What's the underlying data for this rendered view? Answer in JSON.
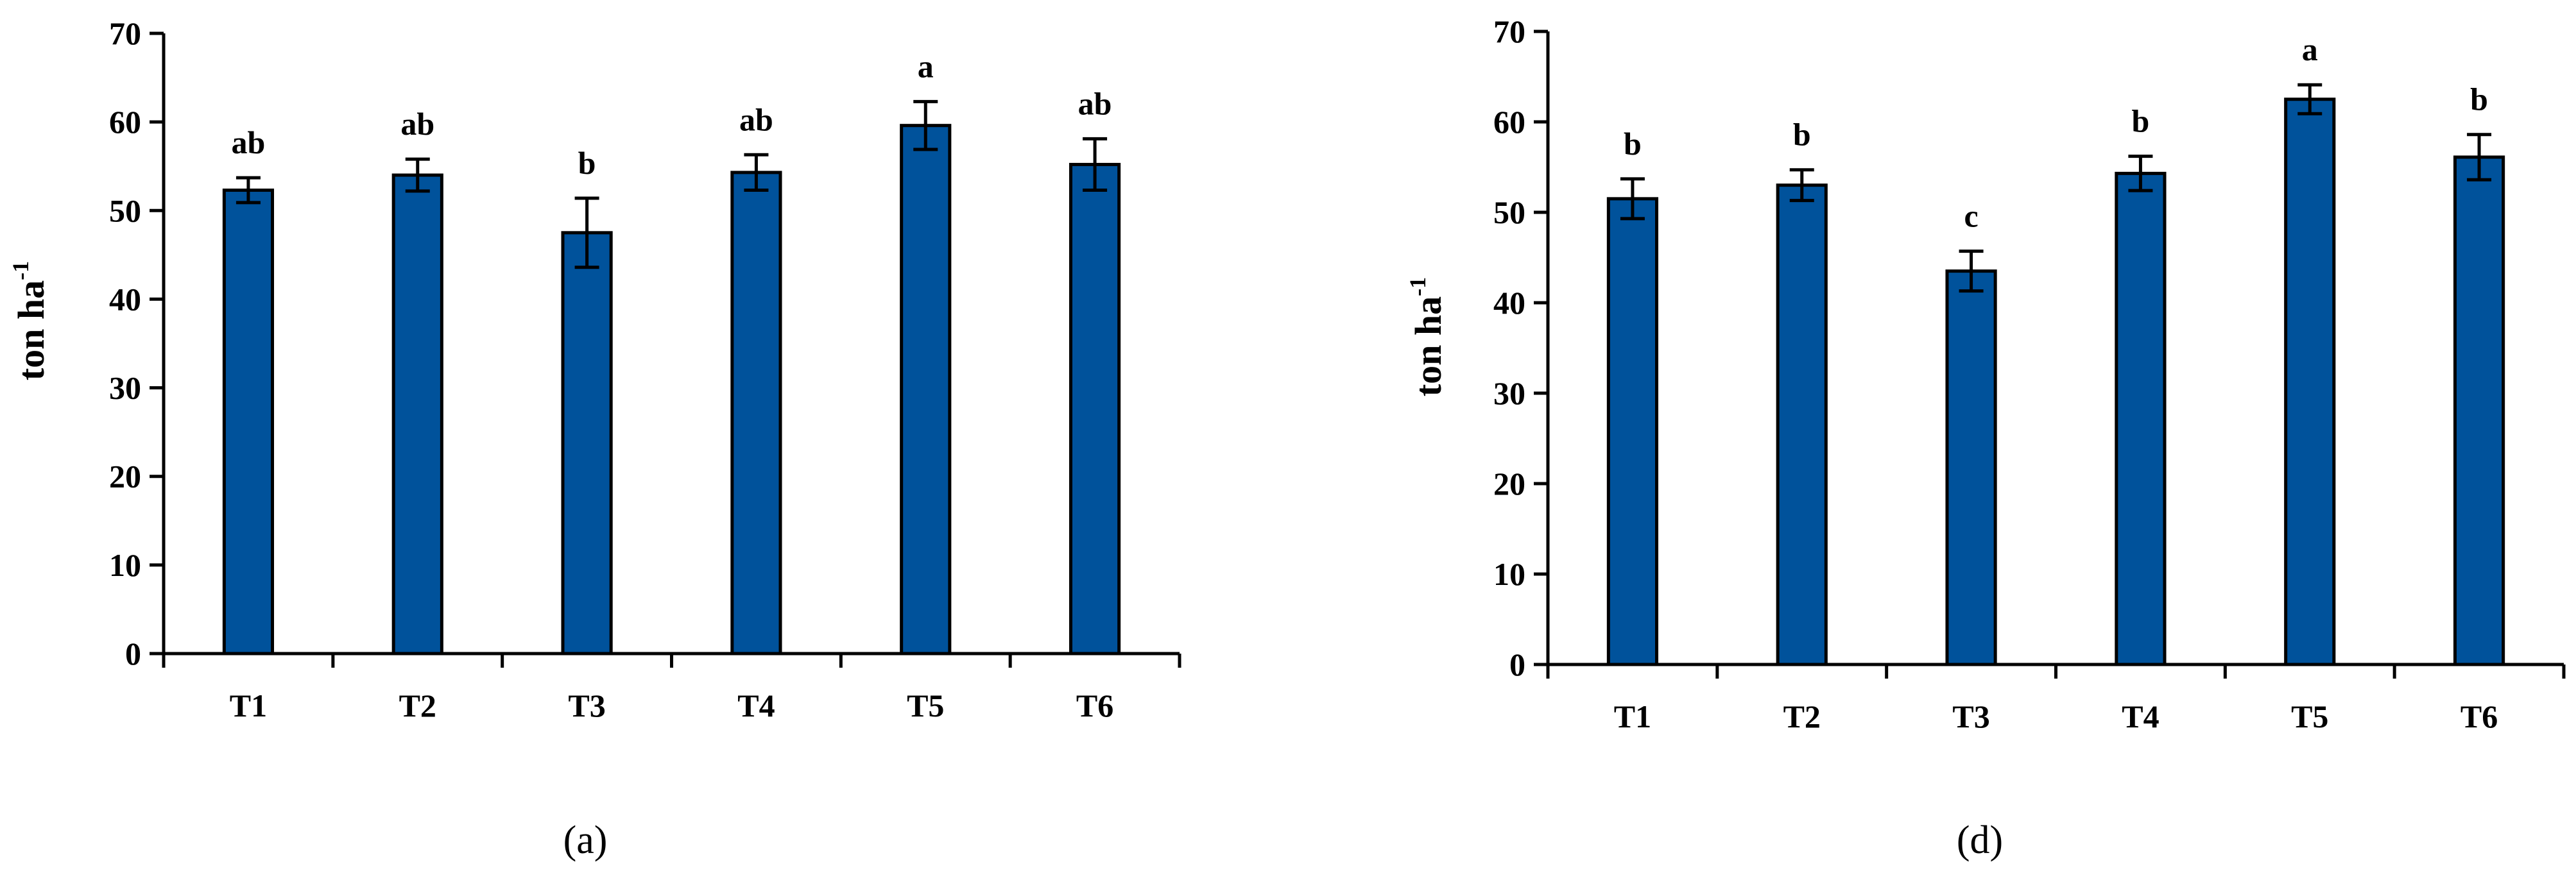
{
  "chart_data": [
    {
      "type": "bar",
      "panel_label": "(a)",
      "ylabel": "ton ha",
      "ylabel_superscript": "-1",
      "ylim": [
        0,
        70
      ],
      "yticks": [
        0,
        10,
        20,
        30,
        40,
        50,
        60,
        70
      ],
      "categories": [
        "T1",
        "T2",
        "T3",
        "T4",
        "T5",
        "T6"
      ],
      "values": [
        52.3,
        54.0,
        47.5,
        54.3,
        59.6,
        55.2
      ],
      "errors": [
        1.4,
        1.8,
        3.9,
        2.0,
        2.7,
        2.9
      ],
      "letters": [
        "ab",
        "ab",
        "b",
        "ab",
        "a",
        "ab"
      ],
      "bar_color": "#00529B",
      "grid": false
    },
    {
      "type": "bar",
      "panel_label": "(d)",
      "ylabel": "ton ha",
      "ylabel_superscript": "-1",
      "ylim": [
        0,
        70
      ],
      "yticks": [
        0,
        10,
        20,
        30,
        40,
        50,
        60,
        70
      ],
      "categories": [
        "T1",
        "T2",
        "T3",
        "T4",
        "T5",
        "T6"
      ],
      "values": [
        51.5,
        53.0,
        43.5,
        54.3,
        62.5,
        56.1
      ],
      "errors": [
        2.2,
        1.7,
        2.2,
        1.9,
        1.6,
        2.5
      ],
      "letters": [
        "b",
        "b",
        "c",
        "b",
        "a",
        "b"
      ],
      "bar_color": "#00529B",
      "grid": false
    }
  ]
}
